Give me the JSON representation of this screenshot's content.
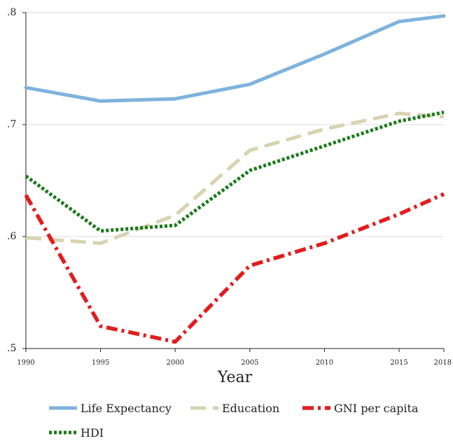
{
  "chart_data": {
    "type": "line",
    "xlabel": "Year",
    "ylabel": "",
    "x": [
      1990,
      1995,
      2000,
      2005,
      2010,
      2015,
      2018
    ],
    "xticks": [
      1990,
      1995,
      2000,
      2005,
      2010,
      2015,
      2018
    ],
    "xtick_labels": [
      "1990",
      "1995",
      "2000",
      "2005",
      "2010",
      "2015",
      "2018"
    ],
    "ylim": [
      0.5,
      0.8
    ],
    "yticks": [
      0.5,
      0.6,
      0.7,
      0.8
    ],
    "ytick_labels": [
      ".5",
      ".6",
      ".7",
      ".8"
    ],
    "grid": "horizontal",
    "legend_position": "bottom",
    "series": [
      {
        "name": "Life Expectancy",
        "color": "#7fb3dd",
        "dash": "solid",
        "values": [
          0.733,
          0.721,
          0.723,
          0.736,
          0.763,
          0.792,
          0.797
        ]
      },
      {
        "name": "Education",
        "color": "#d8d2b0",
        "dash": "long-dash",
        "values": [
          0.599,
          0.594,
          0.619,
          0.677,
          0.696,
          0.71,
          0.707
        ]
      },
      {
        "name": "GNI per capita",
        "color": "#e11d1d",
        "dash": "dash-dot",
        "values": [
          0.637,
          0.52,
          0.506,
          0.574,
          0.594,
          0.62,
          0.638
        ]
      },
      {
        "name": "HDI",
        "color": "#1a7a1a",
        "dash": "dotted",
        "values": [
          0.654,
          0.605,
          0.61,
          0.659,
          0.681,
          0.703,
          0.711
        ]
      }
    ]
  }
}
